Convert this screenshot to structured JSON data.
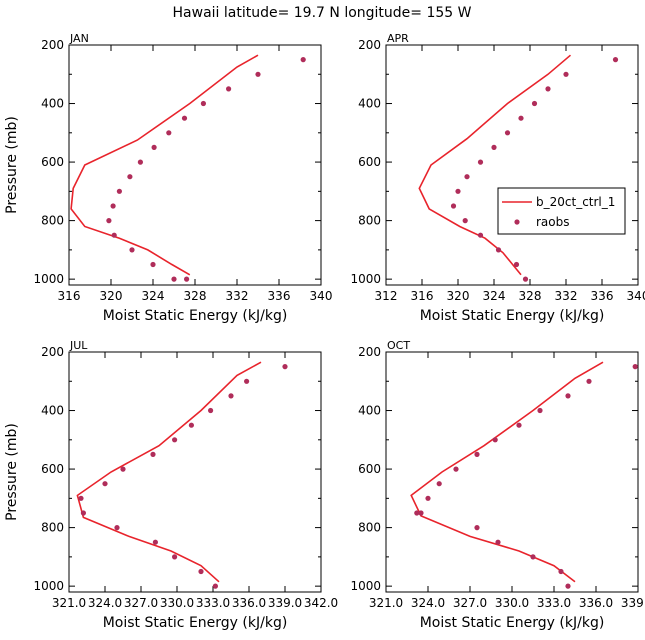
{
  "figure": {
    "title": "Hawaii  latitude= 19.7 N longitude= 155 W"
  },
  "legend": {
    "model_label": "b_20ct_ctrl_1",
    "obs_label": "raobs"
  },
  "colors": {
    "model": "#e8242c",
    "obs": "#b02d5a"
  },
  "chart_data": [
    {
      "type": "line",
      "panel": "JAN",
      "xlabel": "Moist Static Energy (kJ/kg)",
      "ylabel": "Pressure (mb)",
      "xlim": [
        316,
        340
      ],
      "ylim": [
        200,
        1020
      ],
      "y_inverted": true,
      "xticks": [
        316,
        320,
        324,
        328,
        332,
        336,
        340
      ],
      "xtick_labels": [
        "316",
        "320",
        "324",
        "328",
        "332",
        "336",
        "340"
      ],
      "yticks": [
        200,
        400,
        600,
        800,
        1000
      ],
      "ytick_labels": [
        "200",
        "400",
        "600",
        "800",
        "1000"
      ],
      "series": [
        {
          "style": "line",
          "x": [
            334.0,
            332.0,
            327.5,
            322.5,
            317.5,
            316.4,
            316.2,
            317.5,
            320.8,
            323.5,
            325.8,
            327.5
          ],
          "y": [
            235,
            275,
            400,
            525,
            610,
            690,
            760,
            820,
            860,
            900,
            950,
            985
          ]
        },
        {
          "style": "scatter",
          "x": [
            338.3,
            334.0,
            331.2,
            328.8,
            327.0,
            325.5,
            324.1,
            322.8,
            321.8,
            320.8,
            320.2,
            319.8,
            320.3,
            322.0,
            324.0,
            326.0,
            327.2
          ],
          "y": [
            250,
            300,
            350,
            400,
            450,
            500,
            550,
            600,
            650,
            700,
            750,
            800,
            850,
            900,
            950,
            1000,
            1000
          ]
        }
      ]
    },
    {
      "type": "line",
      "panel": "APR",
      "xlabel": "Moist Static Energy (kJ/kg)",
      "ylabel": "",
      "xlim": [
        312,
        340
      ],
      "ylim": [
        200,
        1020
      ],
      "y_inverted": true,
      "xticks": [
        312,
        316,
        320,
        324,
        328,
        332,
        336,
        340
      ],
      "xtick_labels": [
        "312",
        "316",
        "320",
        "324",
        "328",
        "332",
        "336",
        "340"
      ],
      "yticks": [
        200,
        400,
        600,
        800,
        1000
      ],
      "ytick_labels": [
        "200",
        "400",
        "600",
        "800",
        "1000"
      ],
      "legend": "right",
      "series": [
        {
          "style": "line",
          "x": [
            332.5,
            330.0,
            325.5,
            321.0,
            317.0,
            315.7,
            316.8,
            320.2,
            323.0,
            325.0,
            327.0
          ],
          "y": [
            235,
            300,
            400,
            520,
            610,
            690,
            760,
            820,
            860,
            910,
            985
          ]
        },
        {
          "style": "scatter",
          "x": [
            337.5,
            332.0,
            330.0,
            328.5,
            327.0,
            325.5,
            324.0,
            322.5,
            321.0,
            320.0,
            319.5,
            320.8,
            322.5,
            324.5,
            326.5,
            327.5
          ],
          "y": [
            250,
            300,
            350,
            400,
            450,
            500,
            550,
            600,
            650,
            700,
            750,
            800,
            850,
            900,
            950,
            1000
          ]
        }
      ]
    },
    {
      "type": "line",
      "panel": "JUL",
      "xlabel": "Moist Static Energy (kJ/kg)",
      "ylabel": "Pressure (mb)",
      "xlim": [
        321.0,
        342.0
      ],
      "ylim": [
        200,
        1020
      ],
      "y_inverted": true,
      "xticks": [
        321.0,
        324.0,
        327.0,
        330.0,
        333.0,
        336.0,
        339.0,
        342.0
      ],
      "xtick_labels": [
        "321.0",
        "324.0",
        "327.0",
        "330.0",
        "333.0",
        "336.0",
        "339.0",
        "342.0"
      ],
      "yticks": [
        200,
        400,
        600,
        800,
        1000
      ],
      "ytick_labels": [
        "200",
        "400",
        "600",
        "800",
        "1000"
      ],
      "series": [
        {
          "style": "line",
          "x": [
            337.0,
            335.0,
            332.0,
            328.5,
            324.5,
            321.7,
            322.2,
            326.0,
            329.5,
            332.0,
            333.5
          ],
          "y": [
            235,
            280,
            400,
            520,
            610,
            690,
            765,
            830,
            880,
            930,
            985
          ]
        },
        {
          "style": "scatter",
          "x": [
            339.0,
            335.8,
            334.5,
            332.8,
            331.2,
            329.8,
            328.0,
            325.5,
            324.0,
            322.0,
            322.2,
            325.0,
            328.2,
            329.8,
            332.0,
            333.2
          ],
          "y": [
            250,
            300,
            350,
            400,
            450,
            500,
            550,
            600,
            650,
            700,
            750,
            800,
            850,
            900,
            950,
            1000
          ]
        }
      ]
    },
    {
      "type": "line",
      "panel": "OCT",
      "xlabel": "Moist Static Energy (kJ/kg)",
      "ylabel": "",
      "xlim": [
        321.0,
        339.0
      ],
      "ylim": [
        200,
        1020
      ],
      "y_inverted": true,
      "xticks": [
        321.0,
        324.0,
        327.0,
        330.0,
        333.0,
        336.0,
        339.0
      ],
      "xtick_labels": [
        "321.0",
        "324.0",
        "327.0",
        "330.0",
        "333.0",
        "336.0",
        "339.0"
      ],
      "yticks": [
        200,
        400,
        600,
        800,
        1000
      ],
      "ytick_labels": [
        "200",
        "400",
        "600",
        "800",
        "1000"
      ],
      "series": [
        {
          "style": "line",
          "x": [
            336.5,
            334.5,
            331.5,
            328.0,
            325.0,
            322.8,
            323.5,
            327.0,
            330.5,
            333.0,
            334.5
          ],
          "y": [
            235,
            290,
            400,
            520,
            610,
            690,
            760,
            830,
            880,
            930,
            985
          ]
        },
        {
          "style": "scatter",
          "x": [
            338.8,
            335.5,
            334.0,
            332.0,
            330.5,
            328.8,
            327.5,
            326.0,
            324.8,
            324.0,
            323.2,
            323.5,
            327.5,
            329.0,
            331.5,
            333.5,
            334.0
          ],
          "y": [
            250,
            300,
            350,
            400,
            450,
            500,
            550,
            600,
            650,
            700,
            750,
            750,
            800,
            850,
            900,
            950,
            1000
          ]
        }
      ]
    }
  ]
}
